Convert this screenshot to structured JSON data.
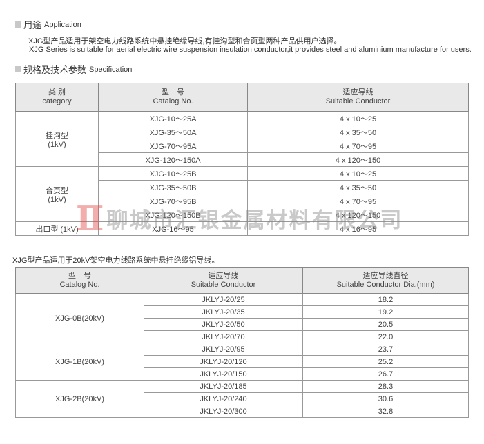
{
  "application": {
    "title_cn": "用途",
    "title_en": "Application",
    "line_cn": "XJG型产品适用于架空电力线路系统中悬挂绝缘导线,有挂沟型和合页型两种产品供用户选择。",
    "line_en": "XJG Series is suitable for aerial electric wire suspension insulation conductor,it provides steel and aluminium manufacture for users."
  },
  "specification": {
    "title_cn": "规格及技术参数",
    "title_en": "Specification"
  },
  "table1": {
    "headers": [
      {
        "cn": "类 别",
        "en": "category"
      },
      {
        "cn": "型　号",
        "en": "Catalog No."
      },
      {
        "cn": "适应导线",
        "en": "Suitable Conductor"
      }
    ],
    "groups": [
      {
        "category": "挂沟型",
        "voltage": "(1kV)",
        "rows": [
          [
            "XJG-10～25A",
            "4 x 10～25"
          ],
          [
            "XJG-35～50A",
            "4 x 35～50"
          ],
          [
            "XJG-70～95A",
            "4 x 70～95"
          ],
          [
            "XJG-120～150A",
            "4 x 120～150"
          ]
        ]
      },
      {
        "category": "合页型",
        "voltage": "(1kV)",
        "rows": [
          [
            "XJG-10～25B",
            "4 x 10～25"
          ],
          [
            "XJG-35～50B",
            "4 x 35～50"
          ],
          [
            "XJG-70～95B",
            "4 x 70～95"
          ],
          [
            "XJG-120～150B",
            "4 x 120～150"
          ]
        ]
      },
      {
        "category": "出口型 (1kV)",
        "rows": [
          [
            "XJG-16～95",
            "4 x 16～95"
          ]
        ]
      }
    ]
  },
  "note2": "XJG型产品适用于20kV架空电力线路系统中悬挂绝缘铝导线。",
  "table2": {
    "headers": [
      {
        "cn": "型　号",
        "en": "Catalog No."
      },
      {
        "cn": "适应导线",
        "en": "Suitable Conductor"
      },
      {
        "cn": "适应导线直径",
        "en": "Suitable Conductor  Dia.(mm)"
      }
    ],
    "groups": [
      {
        "model": "XJG-0B(20kV)",
        "rows": [
          [
            "JKLYJ-20/25",
            "18.2"
          ],
          [
            "JKLYJ-20/35",
            "19.2"
          ],
          [
            "JKLYJ-20/50",
            "20.5"
          ],
          [
            "JKLYJ-20/70",
            "22.0"
          ]
        ]
      },
      {
        "model": "XJG-1B(20kV)",
        "rows": [
          [
            "JKLYJ-20/95",
            "23.7"
          ],
          [
            "JKLYJ-20/120",
            "25.2"
          ],
          [
            "JKLYJ-20/150",
            "26.7"
          ]
        ]
      },
      {
        "model": "XJG-2B(20kV)",
        "rows": [
          [
            "JKLYJ-20/185",
            "28.3"
          ],
          [
            "JKLYJ-20/240",
            "30.6"
          ],
          [
            "JKLYJ-20/300",
            "32.8"
          ]
        ]
      }
    ]
  },
  "watermark": {
    "logo": "H",
    "text": "聊城市汇银金属材料有限公司",
    "logo_color": "#e34b4b"
  }
}
